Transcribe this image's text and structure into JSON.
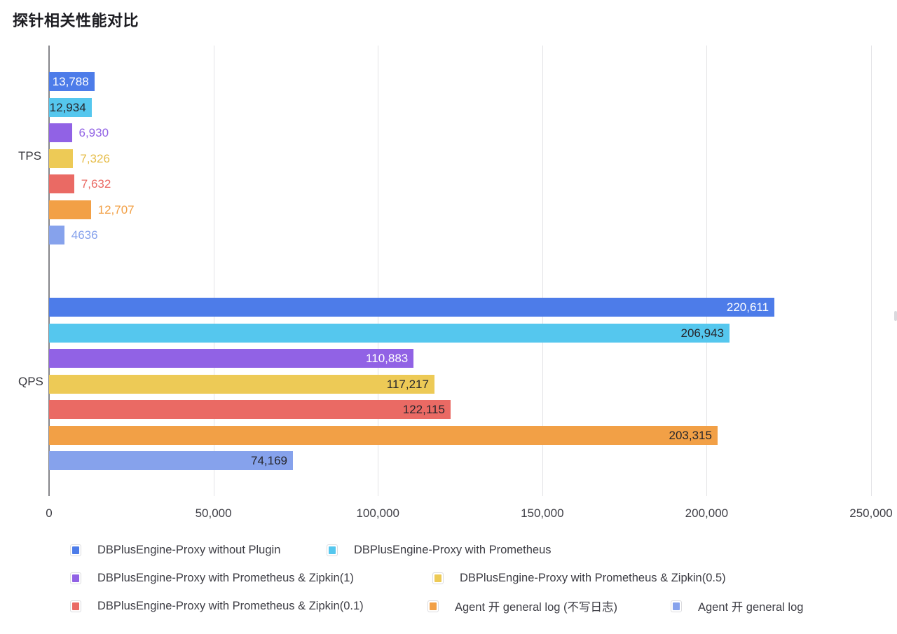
{
  "title": "探针相关性能对比",
  "chart_data": {
    "type": "bar",
    "orientation": "horizontal",
    "title": "探针相关性能对比",
    "groups": [
      "TPS",
      "QPS"
    ],
    "x_axis": {
      "ticks": [
        "0",
        "50,000",
        "100,000",
        "150,000",
        "200,000",
        "250,000"
      ],
      "tick_values": [
        0,
        50000,
        100000,
        150000,
        200000,
        250000
      ],
      "min": 0,
      "max": 250000
    },
    "grid": true,
    "legend_position": "bottom",
    "series": [
      {
        "name": "DBPlusEngine-Proxy without Plugin",
        "color": "#4d7ce9",
        "tps": 13788,
        "qps": 220611,
        "tps_label": "13,788",
        "qps_label": "220,611",
        "tps_label_pos": "inside",
        "qps_label_pos": "inside",
        "tps_label_color": "#ffffff",
        "qps_label_color": "#ffffff"
      },
      {
        "name": "DBPlusEngine-Proxy with Prometheus",
        "color": "#55c7ee",
        "tps": 12934,
        "qps": 206943,
        "tps_label": "12,934",
        "qps_label": "206,943",
        "tps_label_pos": "inside",
        "qps_label_pos": "inside",
        "tps_label_color": "#26262c",
        "qps_label_color": "#26262c"
      },
      {
        "name": "DBPlusEngine-Proxy with Prometheus & Zipkin(1)",
        "color": "#9162e5",
        "tps": 6930,
        "qps": 110883,
        "tps_label": "6,930",
        "qps_label": "110,883",
        "tps_label_pos": "outside",
        "qps_label_pos": "inside",
        "tps_label_color": "#9162e5",
        "qps_label_color": "#ffffff"
      },
      {
        "name": "DBPlusEngine-Proxy with Prometheus & Zipkin(0.5)",
        "color": "#edca56",
        "tps": 7326,
        "qps": 117217,
        "tps_label": "7,326",
        "qps_label": "117,217",
        "tps_label_pos": "outside",
        "qps_label_pos": "inside",
        "tps_label_color": "#e6bd49",
        "qps_label_color": "#26262c"
      },
      {
        "name": "DBPlusEngine-Proxy with Prometheus & Zipkin(0.1)",
        "color": "#ea6a64",
        "tps": 7632,
        "qps": 122115,
        "tps_label": "7,632",
        "qps_label": "122,115",
        "tps_label_pos": "outside",
        "qps_label_pos": "inside",
        "tps_label_color": "#ea6a64",
        "qps_label_color": "#26262c"
      },
      {
        "name": "Agent 开 general log (不写日志)",
        "color": "#f2a046",
        "tps": 12707,
        "qps": 203315,
        "tps_label": "12,707",
        "qps_label": "203,315",
        "tps_label_pos": "outside",
        "qps_label_pos": "inside",
        "tps_label_color": "#f2a046",
        "qps_label_color": "#26262c"
      },
      {
        "name": "Agent 开 general log",
        "color": "#86a2ec",
        "tps": 4636,
        "qps": 74169,
        "tps_label": "4636",
        "qps_label": "74,169",
        "tps_label_pos": "outside",
        "qps_label_pos": "inside",
        "tps_label_color": "#86a2ec",
        "qps_label_color": "#26262c"
      }
    ]
  }
}
